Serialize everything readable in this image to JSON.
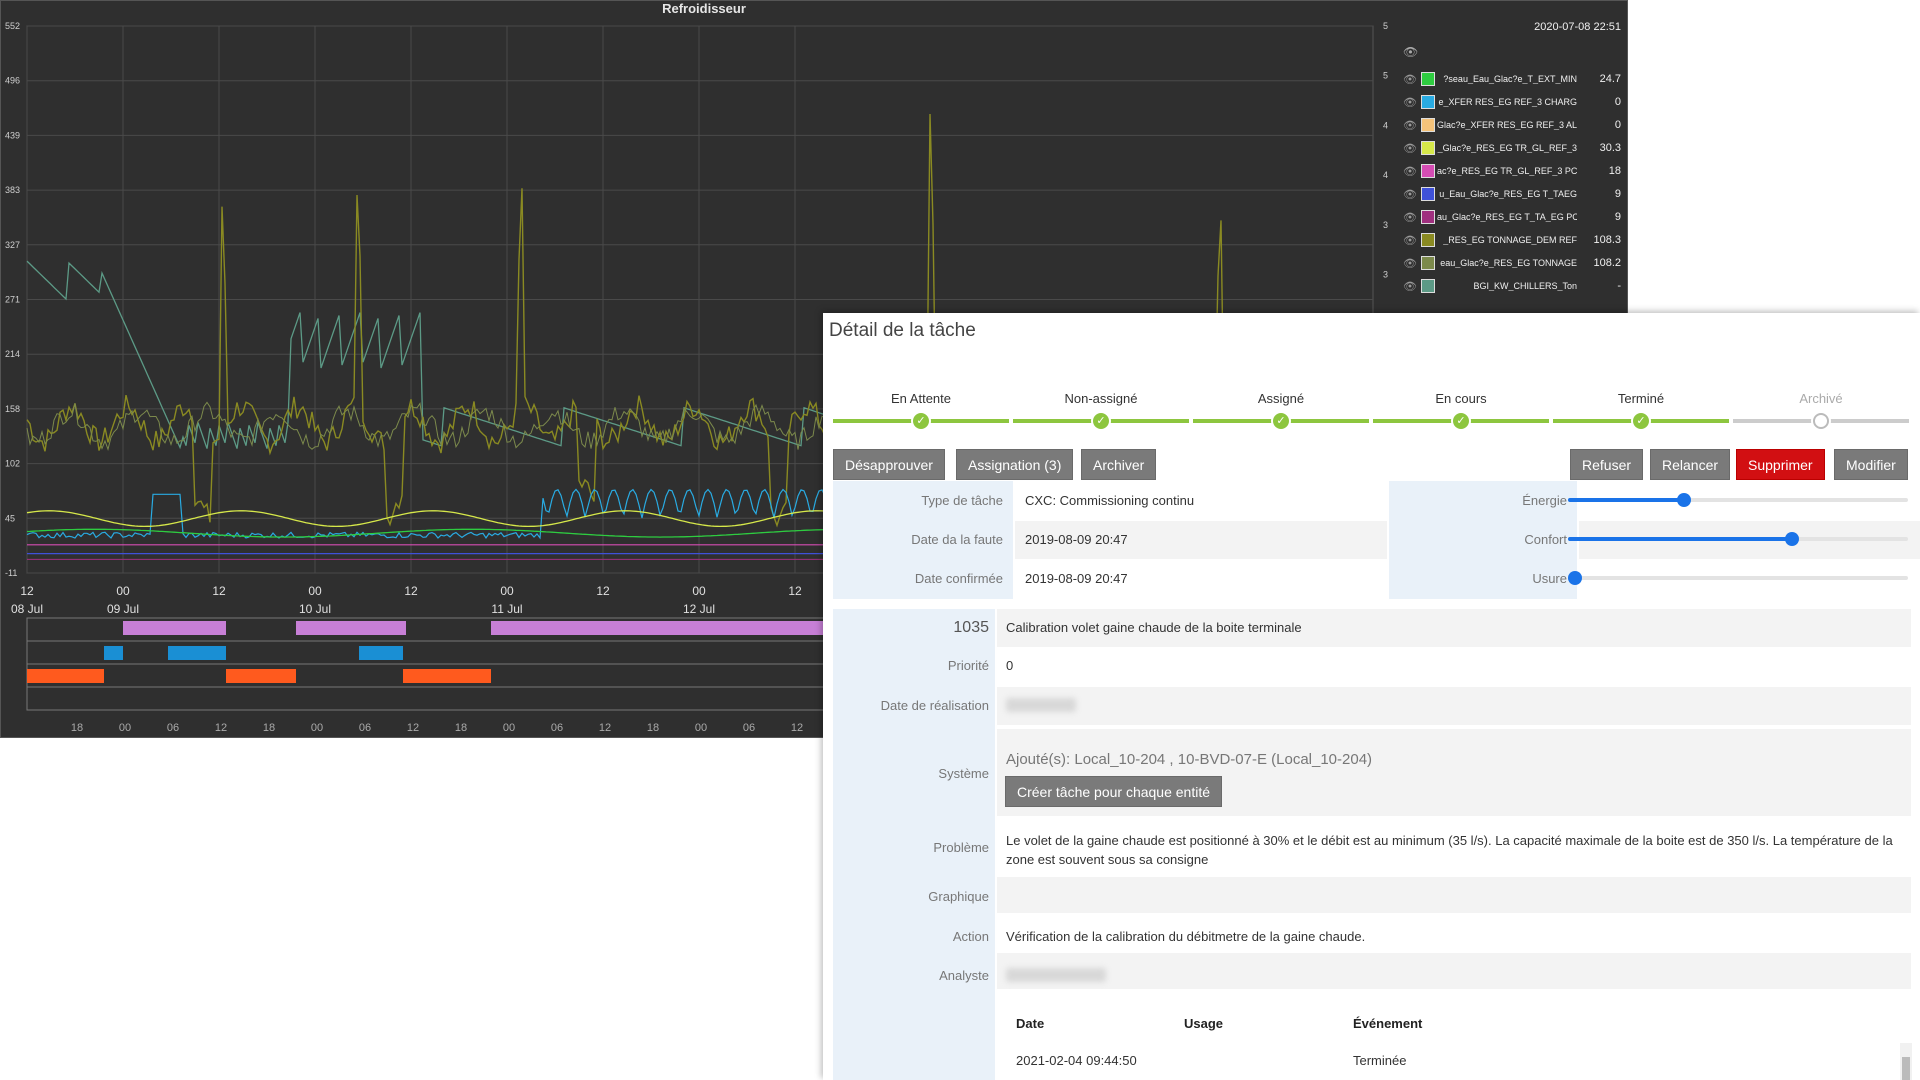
{
  "chart": {
    "title": "Refroidisseur",
    "timestamp": "2020-07-08 22:51",
    "y_left_ticks": [
      "552",
      "496",
      "439",
      "383",
      "327",
      "271",
      "214",
      "158",
      "102",
      "45",
      "-11"
    ],
    "y_right_ticks": [
      "5",
      "5",
      "4",
      "4",
      "3",
      "3"
    ],
    "x_hour_ticks": [
      "12",
      "00",
      "12",
      "00",
      "12",
      "00",
      "12",
      "00",
      "12"
    ],
    "x_day_ticks": [
      "08 Jul",
      "09 Jul",
      "10 Jul",
      "11 Jul",
      "12 Jul"
    ],
    "x_minor_ticks": [
      "18",
      "00",
      "06",
      "12",
      "18",
      "00",
      "06",
      "12",
      "18",
      "00",
      "06",
      "12",
      "18",
      "00",
      "06",
      "12"
    ],
    "legend": [
      {
        "name": "?seau_Eau_Glac?e_T_EXT_MIN",
        "value": "24.7",
        "color": "#2ecc40"
      },
      {
        "name": "e_XFER RES_EG REF_3 CHARG",
        "value": "0",
        "color": "#29abe2"
      },
      {
        "name": "Glac?e_XFER RES_EG REF_3 AL",
        "value": "0",
        "color": "#f5c37a"
      },
      {
        "name": "_Glac?e_RES_EG TR_GL_REF_3",
        "value": "30.3",
        "color": "#d6e84a"
      },
      {
        "name": "ac?e_RES_EG TR_GL_REF_3 PC",
        "value": "18",
        "color": "#d64db4"
      },
      {
        "name": "u_Eau_Glac?e_RES_EG T_TAEG",
        "value": "9",
        "color": "#3f51d8"
      },
      {
        "name": "au_Glac?e_RES_EG T_TA_EG PC",
        "value": "9",
        "color": "#a0307f"
      },
      {
        "name": "_RES_EG TONNAGE_DEM REF",
        "value": "108.3",
        "color": "#8a8a22"
      },
      {
        "name": "eau_Glac?e_RES_EG TONNAGE",
        "value": "108.2",
        "color": "#7c8a4c"
      },
      {
        "name": "BGI_KW_CHILLERS_Ton",
        "value": "-",
        "color": "#5c9a86"
      }
    ]
  },
  "task": {
    "title": "Détail de la tâche",
    "steps": [
      {
        "label": "En Attente",
        "done": true
      },
      {
        "label": "Non-assigné",
        "done": true
      },
      {
        "label": "Assigné",
        "done": true
      },
      {
        "label": "En cours",
        "done": true
      },
      {
        "label": "Terminé",
        "done": true
      },
      {
        "label": "Archivé",
        "done": false
      }
    ],
    "buttons": {
      "disapprove": "Désapprouver",
      "assignment": "Assignation (3)",
      "archive": "Archiver",
      "refuse": "Refuser",
      "relaunch": "Relancer",
      "delete": "Supprimer",
      "modify": "Modifier"
    },
    "fields": {
      "task_type_label": "Type de tâche",
      "task_type_value": "CXC: Commissioning continu",
      "fault_date_label": "Date da la faute",
      "fault_date_value": "2019-08-09 20:47",
      "confirmed_date_label": "Date confirmée",
      "confirmed_date_value": "2019-08-09 20:47"
    },
    "sliders": {
      "energy_label": "Énergie",
      "energy_value": 0.34,
      "comfort_label": "Confort",
      "comfort_value": 0.66,
      "wear_label": "Usure",
      "wear_value": 0.0
    },
    "detail": {
      "id": "1035",
      "id_text": "Calibration volet gaine chaude de la boite terminale",
      "priority_label": "Priorité",
      "priority_value": "0",
      "realization_label": "Date de réalisation",
      "system_label": "Système",
      "system_value": "Ajouté(s): Local_10-204 , 10-BVD-07-E (Local_10-204)",
      "create_button": "Créer tâche pour chaque entité",
      "problem_label": "Problème",
      "problem_value": "Le volet de la gaine chaude est positionné à 30% et le débit est au minimum (35 l/s). La capacité maximale de la boite est de 350 l/s. La température de la zone est souvent sous sa consigne",
      "graph_label": "Graphique",
      "action_label": "Action",
      "action_value": "Vérification de la calibration du débitmetre de la gaine chaude.",
      "analyst_label": "Analyste"
    },
    "history": {
      "headers": [
        "Date",
        "Usage",
        "Événement"
      ],
      "rows": [
        [
          "2021-02-04 09:44:50",
          "",
          "Terminée"
        ]
      ]
    }
  }
}
